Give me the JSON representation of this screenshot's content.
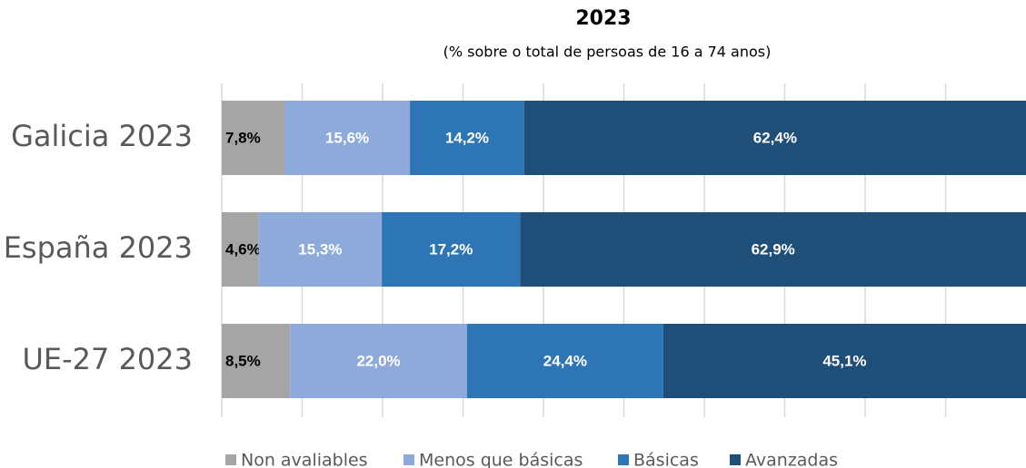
{
  "chart_data": {
    "type": "stacked-barh",
    "title": "2023",
    "subtitle": "(% sobre o total de persoas de 16 a 74 anos)",
    "categories": [
      "Galicia 2023",
      "España 2023",
      "UE-27 2023"
    ],
    "series": [
      {
        "name": "Non avaliables",
        "color": "#a5a5a5",
        "values": [
          7.8,
          4.6,
          8.5
        ],
        "value_labels": [
          "7,8%",
          "4,6%",
          "8,5%"
        ]
      },
      {
        "name": "Menos que básicas",
        "color": "#8eaadb",
        "values": [
          15.6,
          15.3,
          22.0
        ],
        "value_labels": [
          "15,6%",
          "15,3%",
          "22,0%"
        ]
      },
      {
        "name": "Básicas",
        "color": "#2e75b6",
        "values": [
          14.2,
          17.2,
          24.4
        ],
        "value_labels": [
          "14,2%",
          "17,2%",
          "24,4%"
        ]
      },
      {
        "name": "Avanzadas",
        "color": "#1f4e79",
        "values": [
          62.4,
          62.9,
          45.1
        ],
        "value_labels": [
          "62,4%",
          "62,9%",
          "45,1%"
        ]
      }
    ],
    "xlim": [
      0,
      100
    ],
    "xticks": [
      0,
      10,
      20,
      30,
      40,
      50,
      60,
      70,
      80,
      90
    ],
    "grid": true,
    "legend": "bottom"
  }
}
